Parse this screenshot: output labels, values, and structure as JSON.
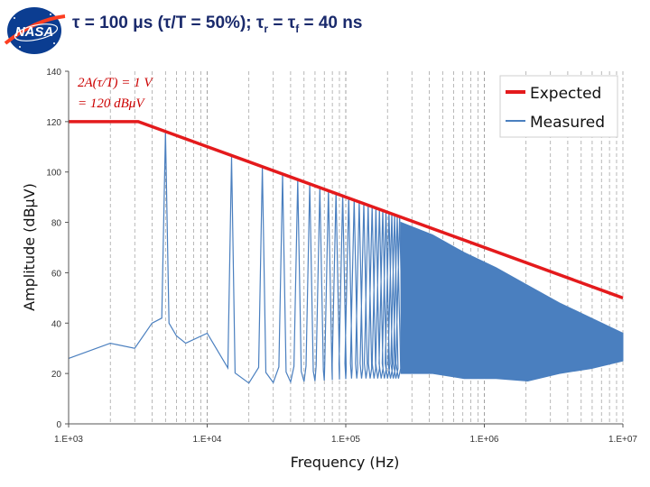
{
  "header": {
    "logo_text": "NASA",
    "title_main": "τ = 100 μs (τ/T = 50%); τ",
    "title_r_sub": "r",
    "title_mid": " = τ",
    "title_f_sub": "f",
    "title_end": " = 40 ns"
  },
  "chart_data": {
    "type": "line",
    "title": "τ = 100 μs (τ/T = 50%); τr = τf = 40 ns",
    "xlabel": "Frequency (Hz)",
    "ylabel": "Amplitude (dBμV)",
    "xscale": "log",
    "xlim": [
      1000,
      10000000
    ],
    "ylim": [
      0,
      140
    ],
    "x_ticks": [
      1000,
      10000,
      100000,
      1000000,
      10000000
    ],
    "x_tick_labels": [
      "1.E+03",
      "1.E+04",
      "1.E+05",
      "1.E+06",
      "1.E+07"
    ],
    "y_ticks": [
      0,
      20,
      40,
      60,
      80,
      100,
      120,
      140
    ],
    "y_tick_labels": [
      "0",
      "20",
      "40",
      "60",
      "80",
      "100",
      "120",
      "140"
    ],
    "annotation": [
      "2A(τ/T) = 1 V",
      "= 120 dBμV"
    ],
    "legend_position": "top-right",
    "colors": {
      "expected": "#e41a1c",
      "measured": "#4a7fbf",
      "grid": "#9a9a9a"
    },
    "series": [
      {
        "name": "Expected",
        "x": [
          1000,
          3183,
          10000,
          100000,
          7958000,
          10000000
        ],
        "y": [
          120,
          120,
          110.06,
          90.06,
          52.0,
          50.0
        ]
      },
      {
        "name": "Measured",
        "peaks": [
          {
            "f": 5000,
            "dB": 116
          },
          {
            "f": 15000,
            "dB": 106
          },
          {
            "f": 25000,
            "dB": 102
          },
          {
            "f": 35000,
            "dB": 99
          },
          {
            "f": 45000,
            "dB": 97
          },
          {
            "f": 55000,
            "dB": 95.5
          },
          {
            "f": 65000,
            "dB": 94
          },
          {
            "f": 75000,
            "dB": 93
          },
          {
            "f": 85000,
            "dB": 92
          },
          {
            "f": 95000,
            "dB": 91
          },
          {
            "f": 105000,
            "dB": 90
          },
          {
            "f": 115000,
            "dB": 89.2
          },
          {
            "f": 125000,
            "dB": 88.5
          },
          {
            "f": 135000,
            "dB": 87.8
          },
          {
            "f": 145000,
            "dB": 87.2
          },
          {
            "f": 155000,
            "dB": 86.6
          },
          {
            "f": 165000,
            "dB": 86
          },
          {
            "f": 175000,
            "dB": 85.5
          },
          {
            "f": 185000,
            "dB": 85
          },
          {
            "f": 195000,
            "dB": 84.5
          },
          {
            "f": 205000,
            "dB": 84
          },
          {
            "f": 215000,
            "dB": 83.6
          },
          {
            "f": 225000,
            "dB": 83.2
          },
          {
            "f": 235000,
            "dB": 82.8
          },
          {
            "f": 245000,
            "dB": 82.4
          }
        ],
        "low_freq_points": [
          {
            "f": 1000,
            "dB": 26
          },
          {
            "f": 2000,
            "dB": 32
          },
          {
            "f": 3000,
            "dB": 30
          },
          {
            "f": 4000,
            "dB": 40
          },
          {
            "f": 6000,
            "dB": 35
          },
          {
            "f": 7000,
            "dB": 32
          }
        ],
        "dense_band": {
          "from_hz": 250000,
          "to_hz": 10000000,
          "upper_dB": [
            80,
            75,
            68,
            62,
            55,
            48,
            42,
            36
          ],
          "lower_dB": [
            20,
            20,
            18,
            18,
            17,
            20,
            22,
            25
          ]
        }
      }
    ]
  }
}
